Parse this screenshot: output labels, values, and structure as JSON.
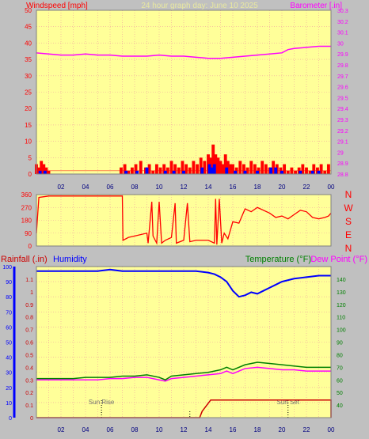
{
  "colors": {
    "background": "#c0c0c0",
    "plot_bg": "#ffff99",
    "grid": "#f0a0a0",
    "axis": "#000000",
    "windspeed": "#ff0000",
    "gust_avg": "#0000ff",
    "wind_green": "#008000",
    "barometer": "#ff00ff",
    "direction": "#ff0000",
    "rainfall": "#cc0000",
    "humidity": "#0000ff",
    "temperature": "#008000",
    "dewpoint": "#ff00ff",
    "title": "#e8e8a0",
    "tick_text": "#000080"
  },
  "header": {
    "windspeed_label": "Windspeed [mph]",
    "title": "24 hour graph day:  June 10 2025",
    "barometer_label": "Barometer [.in]"
  },
  "panel3": {
    "rain_label": "Rainfall (.in)",
    "humidity_label": "Humidity",
    "temp_label": "Temperature (°F)",
    "dew_label": "Dew Point (°F)",
    "sunrise_label": "Sun Rise",
    "sunset_label": "Sun Set"
  },
  "compass": [
    "N",
    "W",
    "S",
    "E",
    "N"
  ],
  "chart_data": [
    {
      "type": "bar",
      "name": "wind",
      "x_ticks": [
        "02",
        "04",
        "06",
        "08",
        "10",
        "12",
        "14",
        "16",
        "18",
        "20",
        "22",
        "00"
      ],
      "left_axis": {
        "label": "Windspeed [mph]",
        "ylim": [
          0,
          50
        ],
        "ticks": [
          0,
          5,
          10,
          15,
          20,
          25,
          30,
          35,
          40,
          45,
          50
        ]
      },
      "right_axis": {
        "label": "Barometer [.in]",
        "ylim": [
          28.8,
          30.3
        ],
        "ticks": [
          "28.8",
          "28.9",
          "29",
          "29.1",
          "29.2",
          "29.3",
          "29.4",
          "29.5",
          "29.6",
          "29.7",
          "29.8",
          "29.9",
          "30",
          "30.1",
          "30.2",
          "30.3"
        ]
      },
      "windspeed": [
        [
          0.0,
          3
        ],
        [
          0.2,
          2
        ],
        [
          0.4,
          4
        ],
        [
          0.6,
          3
        ],
        [
          0.8,
          2
        ],
        [
          1.0,
          1
        ],
        [
          6.9,
          2
        ],
        [
          7.2,
          3
        ],
        [
          7.5,
          1
        ],
        [
          7.8,
          2
        ],
        [
          8.1,
          3
        ],
        [
          8.5,
          4
        ],
        [
          8.9,
          2
        ],
        [
          9.2,
          3
        ],
        [
          9.5,
          1
        ],
        [
          9.8,
          3
        ],
        [
          10.1,
          2
        ],
        [
          10.4,
          3
        ],
        [
          10.7,
          2
        ],
        [
          11.0,
          4
        ],
        [
          11.3,
          3
        ],
        [
          11.6,
          2
        ],
        [
          11.9,
          4
        ],
        [
          12.2,
          3
        ],
        [
          12.5,
          2
        ],
        [
          12.8,
          4
        ],
        [
          13.1,
          3
        ],
        [
          13.4,
          5
        ],
        [
          13.7,
          4
        ],
        [
          14.0,
          6
        ],
        [
          14.2,
          5
        ],
        [
          14.4,
          9
        ],
        [
          14.6,
          6
        ],
        [
          14.8,
          5
        ],
        [
          15.0,
          4
        ],
        [
          15.2,
          3
        ],
        [
          15.4,
          6
        ],
        [
          15.6,
          4
        ],
        [
          15.8,
          3
        ],
        [
          16.0,
          3
        ],
        [
          16.3,
          2
        ],
        [
          16.6,
          4
        ],
        [
          16.9,
          3
        ],
        [
          17.2,
          2
        ],
        [
          17.5,
          4
        ],
        [
          17.8,
          3
        ],
        [
          18.1,
          2
        ],
        [
          18.4,
          4
        ],
        [
          18.7,
          3
        ],
        [
          19.0,
          2
        ],
        [
          19.3,
          4
        ],
        [
          19.6,
          3
        ],
        [
          19.9,
          2
        ],
        [
          20.2,
          3
        ],
        [
          20.5,
          1
        ],
        [
          20.8,
          2
        ],
        [
          21.1,
          1
        ],
        [
          21.4,
          2
        ],
        [
          21.7,
          3
        ],
        [
          22.0,
          2
        ],
        [
          22.3,
          1
        ],
        [
          22.6,
          3
        ],
        [
          22.9,
          2
        ],
        [
          23.2,
          3
        ],
        [
          23.5,
          1
        ],
        [
          23.8,
          3
        ]
      ],
      "gust_blue": [
        [
          0.3,
          1
        ],
        [
          0.7,
          1
        ],
        [
          7.3,
          1
        ],
        [
          8.2,
          1
        ],
        [
          9.0,
          2
        ],
        [
          10.5,
          1
        ],
        [
          11.2,
          1
        ],
        [
          12.0,
          1
        ],
        [
          13.5,
          2
        ],
        [
          14.1,
          3
        ],
        [
          14.3,
          2
        ],
        [
          14.5,
          3
        ],
        [
          15.5,
          2
        ],
        [
          16.2,
          1
        ],
        [
          17.0,
          1
        ],
        [
          18.0,
          1
        ],
        [
          19.1,
          2
        ],
        [
          19.5,
          2
        ],
        [
          20.0,
          1
        ],
        [
          21.5,
          1
        ],
        [
          22.5,
          1
        ],
        [
          23.0,
          1
        ]
      ],
      "barometer": [
        [
          0,
          29.91
        ],
        [
          1,
          29.9
        ],
        [
          2,
          29.89
        ],
        [
          3,
          29.89
        ],
        [
          4,
          29.9
        ],
        [
          5,
          29.89
        ],
        [
          6,
          29.89
        ],
        [
          7,
          29.88
        ],
        [
          8,
          29.88
        ],
        [
          9,
          29.88
        ],
        [
          10,
          29.89
        ],
        [
          11,
          29.88
        ],
        [
          12,
          29.88
        ],
        [
          13,
          29.87
        ],
        [
          14,
          29.86
        ],
        [
          15,
          29.86
        ],
        [
          16,
          29.87
        ],
        [
          17,
          29.88
        ],
        [
          18,
          29.89
        ],
        [
          19,
          29.9
        ],
        [
          20,
          29.91
        ],
        [
          20.5,
          29.94
        ],
        [
          21,
          29.95
        ],
        [
          22,
          29.96
        ],
        [
          23,
          29.97
        ],
        [
          24,
          29.97
        ]
      ]
    },
    {
      "type": "line",
      "name": "wind_direction",
      "y_ticks": [
        0,
        90,
        180,
        270,
        360
      ],
      "ylim": [
        0,
        360
      ],
      "direction": [
        [
          0.0,
          90
        ],
        [
          0.2,
          340
        ],
        [
          1,
          350
        ],
        [
          2,
          350
        ],
        [
          3,
          350
        ],
        [
          4,
          350
        ],
        [
          5,
          350
        ],
        [
          6,
          350
        ],
        [
          7,
          350
        ],
        [
          7.05,
          40
        ],
        [
          7.5,
          60
        ],
        [
          8,
          70
        ],
        [
          9,
          90
        ],
        [
          9.1,
          20
        ],
        [
          9.4,
          310
        ],
        [
          9.5,
          70
        ],
        [
          9.8,
          20
        ],
        [
          10.0,
          310
        ],
        [
          10.2,
          20
        ],
        [
          10.5,
          40
        ],
        [
          11,
          60
        ],
        [
          11.3,
          300
        ],
        [
          11.4,
          20
        ],
        [
          12,
          40
        ],
        [
          12.3,
          300
        ],
        [
          12.5,
          30
        ],
        [
          13,
          40
        ],
        [
          14,
          40
        ],
        [
          14.5,
          20
        ],
        [
          14.6,
          330
        ],
        [
          14.7,
          10
        ],
        [
          14.9,
          330
        ],
        [
          15.1,
          20
        ],
        [
          15.3,
          90
        ],
        [
          15.6,
          50
        ],
        [
          16,
          170
        ],
        [
          16.5,
          160
        ],
        [
          17,
          260
        ],
        [
          17.5,
          240
        ],
        [
          18,
          270
        ],
        [
          19,
          230
        ],
        [
          19.5,
          200
        ],
        [
          20,
          210
        ],
        [
          20.5,
          190
        ],
        [
          21,
          220
        ],
        [
          21.5,
          250
        ],
        [
          22,
          240
        ],
        [
          22.5,
          200
        ],
        [
          23,
          190
        ],
        [
          23.5,
          200
        ],
        [
          23.8,
          210
        ],
        [
          24,
          230
        ]
      ]
    },
    {
      "type": "line",
      "name": "humidity_temp_rain",
      "left_axis": {
        "label": "Rainfall (.in)",
        "ylim": [
          0,
          1.2
        ],
        "ticks": [
          "0",
          "0.1",
          "0.2",
          "0.3",
          "0.4",
          "0.5",
          "0.6",
          "0.7",
          "0.8",
          "0.9",
          "1",
          "1.1"
        ]
      },
      "humidity_axis": {
        "label": "Humidity",
        "ylim": [
          0,
          100
        ],
        "ticks": [
          0,
          10,
          20,
          30,
          40,
          50,
          60,
          70,
          80,
          90,
          100
        ]
      },
      "right_axis": {
        "label": "Temperature (°F)",
        "ylim": [
          30,
          150
        ],
        "ticks": [
          40,
          50,
          60,
          70,
          80,
          90,
          100,
          110,
          120,
          130,
          140
        ]
      },
      "humidity": [
        [
          0,
          97
        ],
        [
          1,
          97
        ],
        [
          2,
          97
        ],
        [
          3,
          97
        ],
        [
          4,
          97
        ],
        [
          5,
          97
        ],
        [
          6,
          98
        ],
        [
          7,
          97
        ],
        [
          8,
          97
        ],
        [
          9,
          97
        ],
        [
          10,
          97
        ],
        [
          11,
          97
        ],
        [
          12,
          97
        ],
        [
          13,
          97
        ],
        [
          14,
          96
        ],
        [
          14.5,
          95
        ],
        [
          15,
          93
        ],
        [
          15.5,
          90
        ],
        [
          16,
          84
        ],
        [
          16.5,
          80
        ],
        [
          17,
          81
        ],
        [
          17.5,
          83
        ],
        [
          18,
          82
        ],
        [
          18.5,
          84
        ],
        [
          19,
          86
        ],
        [
          19.5,
          88
        ],
        [
          20,
          90
        ],
        [
          21,
          92
        ],
        [
          22,
          93
        ],
        [
          23,
          94
        ],
        [
          24,
          94
        ]
      ],
      "temperature": [
        [
          0,
          61
        ],
        [
          1,
          61
        ],
        [
          2,
          61
        ],
        [
          3,
          61
        ],
        [
          4,
          62
        ],
        [
          5,
          62
        ],
        [
          6,
          62
        ],
        [
          7,
          63
        ],
        [
          8,
          63
        ],
        [
          9,
          64
        ],
        [
          10,
          62
        ],
        [
          10.5,
          60
        ],
        [
          11,
          63
        ],
        [
          12,
          64
        ],
        [
          13,
          65
        ],
        [
          14,
          66
        ],
        [
          15,
          68
        ],
        [
          15.5,
          70
        ],
        [
          16,
          68
        ],
        [
          17,
          72
        ],
        [
          18,
          74
        ],
        [
          19,
          73
        ],
        [
          20,
          72
        ],
        [
          21,
          71
        ],
        [
          22,
          70
        ],
        [
          23,
          70
        ],
        [
          24,
          70
        ]
      ],
      "dewpoint": [
        [
          0,
          60
        ],
        [
          1,
          60
        ],
        [
          2,
          60
        ],
        [
          3,
          60
        ],
        [
          4,
          60
        ],
        [
          5,
          60
        ],
        [
          6,
          61
        ],
        [
          7,
          61
        ],
        [
          8,
          62
        ],
        [
          9,
          62
        ],
        [
          10,
          60
        ],
        [
          10.5,
          59
        ],
        [
          11,
          61
        ],
        [
          12,
          62
        ],
        [
          13,
          63
        ],
        [
          14,
          64
        ],
        [
          15,
          65
        ],
        [
          15.5,
          67
        ],
        [
          16,
          65
        ],
        [
          17,
          69
        ],
        [
          18,
          70
        ],
        [
          19,
          69
        ],
        [
          20,
          68
        ],
        [
          21,
          68
        ],
        [
          22,
          67
        ],
        [
          23,
          67
        ],
        [
          24,
          67
        ]
      ],
      "rainfall": [
        [
          0,
          0
        ],
        [
          13.3,
          0
        ],
        [
          13.5,
          0.05
        ],
        [
          14.2,
          0.14
        ],
        [
          24,
          0.14
        ]
      ],
      "sunrise_hour": 5.3,
      "sunset_hour": 20.5
    }
  ]
}
